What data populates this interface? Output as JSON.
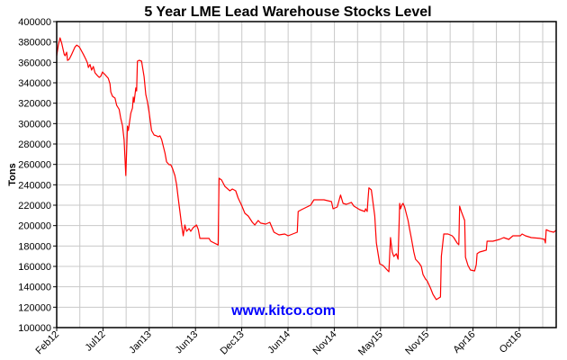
{
  "chart_data": {
    "type": "line",
    "title": "5 Year LME Lead Warehouse Stocks Level",
    "xlabel": "",
    "ylabel": "Tons",
    "watermark": "www.kitco.com",
    "x_unit": "months since Feb 2012",
    "xlim": [
      0,
      60
    ],
    "ylim": [
      100000,
      400000
    ],
    "y_ticks": [
      100000,
      120000,
      140000,
      160000,
      180000,
      200000,
      220000,
      240000,
      260000,
      280000,
      300000,
      320000,
      340000,
      360000,
      380000,
      400000
    ],
    "y_tick_labels": [
      "100000",
      "120000",
      "140000",
      "160000",
      "180000",
      "200000",
      "220000",
      "240000",
      "260000",
      "280000",
      "300000",
      "320000",
      "340000",
      "360000",
      "380000",
      "400000"
    ],
    "x_ticks": [
      0,
      5.56,
      11.11,
      16.67,
      22.22,
      27.78,
      33.34,
      38.89,
      44.45,
      50,
      55.56
    ],
    "x_tick_labels": [
      "Feb12",
      "Jul12",
      "Jan13",
      "Jun13",
      "Dec13",
      "Jun14",
      "Nov14",
      "May15",
      "Nov15",
      "Apr16",
      "Oct16"
    ],
    "x_minor_grid_step": 2.78,
    "grid": true,
    "series": [
      {
        "name": "LME Lead Warehouse Stocks",
        "color": "#ff0000",
        "points": [
          [
            0,
            366500
          ],
          [
            0.2,
            377000
          ],
          [
            0.4,
            384000
          ],
          [
            0.6,
            379000
          ],
          [
            0.9,
            368000
          ],
          [
            1,
            366500
          ],
          [
            1.2,
            370000
          ],
          [
            1.3,
            362000
          ],
          [
            1.5,
            363000
          ],
          [
            1.8,
            368000
          ],
          [
            2.2,
            375000
          ],
          [
            2.4,
            377000
          ],
          [
            2.7,
            375300
          ],
          [
            2.9,
            372600
          ],
          [
            3.2,
            368000
          ],
          [
            3.5,
            363000
          ],
          [
            3.7,
            359400
          ],
          [
            3.8,
            355000
          ],
          [
            4,
            358000
          ],
          [
            4.2,
            352400
          ],
          [
            4.4,
            356000
          ],
          [
            4.6,
            350000
          ],
          [
            4.9,
            347000
          ],
          [
            5.1,
            345300
          ],
          [
            5.3,
            346500
          ],
          [
            5.5,
            350600
          ],
          [
            5.8,
            348000
          ],
          [
            6.2,
            344400
          ],
          [
            6.4,
            339000
          ],
          [
            6.5,
            331000
          ],
          [
            6.7,
            326800
          ],
          [
            7,
            325000
          ],
          [
            7.2,
            318000
          ],
          [
            7.5,
            314000
          ],
          [
            7.7,
            305000
          ],
          [
            7.9,
            298000
          ],
          [
            8.1,
            284000
          ],
          [
            8.3,
            249000
          ],
          [
            8.5,
            297600
          ],
          [
            8.6,
            293200
          ],
          [
            8.9,
            310000
          ],
          [
            9.1,
            315300
          ],
          [
            9.2,
            326000
          ],
          [
            9.3,
            321000
          ],
          [
            9.5,
            335000
          ],
          [
            9.6,
            332000
          ],
          [
            9.7,
            361200
          ],
          [
            9.9,
            362100
          ],
          [
            10.2,
            361200
          ],
          [
            10.5,
            346000
          ],
          [
            10.7,
            328500
          ],
          [
            10.9,
            321500
          ],
          [
            11.1,
            311000
          ],
          [
            11.4,
            293200
          ],
          [
            11.7,
            288800
          ],
          [
            12,
            288000
          ],
          [
            12.2,
            287100
          ],
          [
            12.4,
            288000
          ],
          [
            12.6,
            284400
          ],
          [
            13,
            271200
          ],
          [
            13.2,
            262400
          ],
          [
            13.5,
            259700
          ],
          [
            13.7,
            259700
          ],
          [
            13.9,
            256200
          ],
          [
            14.2,
            249100
          ],
          [
            14.4,
            240300
          ],
          [
            14.6,
            227100
          ],
          [
            14.8,
            213800
          ],
          [
            15,
            200600
          ],
          [
            15.2,
            190000
          ],
          [
            15.4,
            200600
          ],
          [
            15.6,
            194400
          ],
          [
            15.9,
            197100
          ],
          [
            16.1,
            194400
          ],
          [
            16.4,
            198000
          ],
          [
            16.8,
            200600
          ],
          [
            17,
            196200
          ],
          [
            17.2,
            187400
          ],
          [
            18.3,
            187400
          ],
          [
            18.5,
            184700
          ],
          [
            19.4,
            181000
          ],
          [
            19.5,
            246500
          ],
          [
            19.8,
            244700
          ],
          [
            20.2,
            238500
          ],
          [
            20.8,
            234100
          ],
          [
            21.1,
            235900
          ],
          [
            21.5,
            234100
          ],
          [
            21.8,
            227100
          ],
          [
            22.2,
            220000
          ],
          [
            22.6,
            212100
          ],
          [
            23,
            209400
          ],
          [
            23.5,
            203200
          ],
          [
            23.8,
            200600
          ],
          [
            24.2,
            205000
          ],
          [
            24.5,
            202400
          ],
          [
            25.1,
            201500
          ],
          [
            25.6,
            203200
          ],
          [
            26.1,
            193500
          ],
          [
            26.7,
            190900
          ],
          [
            27.4,
            191800
          ],
          [
            27.8,
            190000
          ],
          [
            28.9,
            193500
          ],
          [
            29,
            213800
          ],
          [
            29.4,
            215600
          ],
          [
            30.5,
            220000
          ],
          [
            30.9,
            225300
          ],
          [
            32.1,
            225300
          ],
          [
            33,
            223500
          ],
          [
            33.2,
            216500
          ],
          [
            33.7,
            218200
          ],
          [
            34.1,
            230000
          ],
          [
            34.4,
            221800
          ],
          [
            34.8,
            220900
          ],
          [
            35.4,
            222700
          ],
          [
            35.7,
            219100
          ],
          [
            36.4,
            215600
          ],
          [
            37,
            213800
          ],
          [
            37.1,
            216500
          ],
          [
            37.3,
            213800
          ],
          [
            37.4,
            225600
          ],
          [
            37.5,
            237000
          ],
          [
            37.8,
            235000
          ],
          [
            38.2,
            209400
          ],
          [
            38.4,
            182900
          ],
          [
            38.8,
            162600
          ],
          [
            39.2,
            160900
          ],
          [
            39.7,
            156500
          ],
          [
            39.9,
            154700
          ],
          [
            40.1,
            188200
          ],
          [
            40.3,
            174100
          ],
          [
            40.5,
            169700
          ],
          [
            40.8,
            172400
          ],
          [
            41,
            167100
          ],
          [
            41.2,
            221800
          ],
          [
            41.3,
            216500
          ],
          [
            41.5,
            220900
          ],
          [
            41.6,
            221800
          ],
          [
            41.8,
            218200
          ],
          [
            42.2,
            205000
          ],
          [
            42.4,
            196200
          ],
          [
            42.6,
            187400
          ],
          [
            42.9,
            174100
          ],
          [
            43.1,
            167100
          ],
          [
            43.5,
            163500
          ],
          [
            43.8,
            160000
          ],
          [
            44,
            152100
          ],
          [
            44.3,
            147600
          ],
          [
            44.5,
            145900
          ],
          [
            44.9,
            138800
          ],
          [
            45.2,
            132600
          ],
          [
            45.4,
            130000
          ],
          [
            45.6,
            127400
          ],
          [
            46.1,
            130000
          ],
          [
            46.2,
            170000
          ],
          [
            46.5,
            191800
          ],
          [
            47,
            191800
          ],
          [
            47.5,
            190000
          ],
          [
            47.7,
            188200
          ],
          [
            48.1,
            182900
          ],
          [
            48.3,
            181200
          ],
          [
            48.4,
            219000
          ],
          [
            48.6,
            214000
          ],
          [
            49,
            205000
          ],
          [
            49.1,
            169000
          ],
          [
            49.4,
            160900
          ],
          [
            49.7,
            156500
          ],
          [
            50.2,
            155600
          ],
          [
            50.4,
            161800
          ],
          [
            50.5,
            172400
          ],
          [
            50.8,
            174100
          ],
          [
            51.2,
            175000
          ],
          [
            51.6,
            176000
          ],
          [
            51.7,
            184700
          ],
          [
            51.9,
            184700
          ],
          [
            52.4,
            184700
          ],
          [
            53.2,
            186500
          ],
          [
            53.7,
            188200
          ],
          [
            54.3,
            186500
          ],
          [
            54.8,
            190000
          ],
          [
            55.7,
            190000
          ],
          [
            55.9,
            191800
          ],
          [
            56.3,
            190000
          ],
          [
            57,
            188200
          ],
          [
            58.1,
            187400
          ],
          [
            58.6,
            186500
          ],
          [
            58.7,
            182900
          ],
          [
            58.8,
            196000
          ],
          [
            59.2,
            194500
          ],
          [
            59.7,
            193500
          ],
          [
            60,
            195500
          ]
        ]
      }
    ]
  }
}
